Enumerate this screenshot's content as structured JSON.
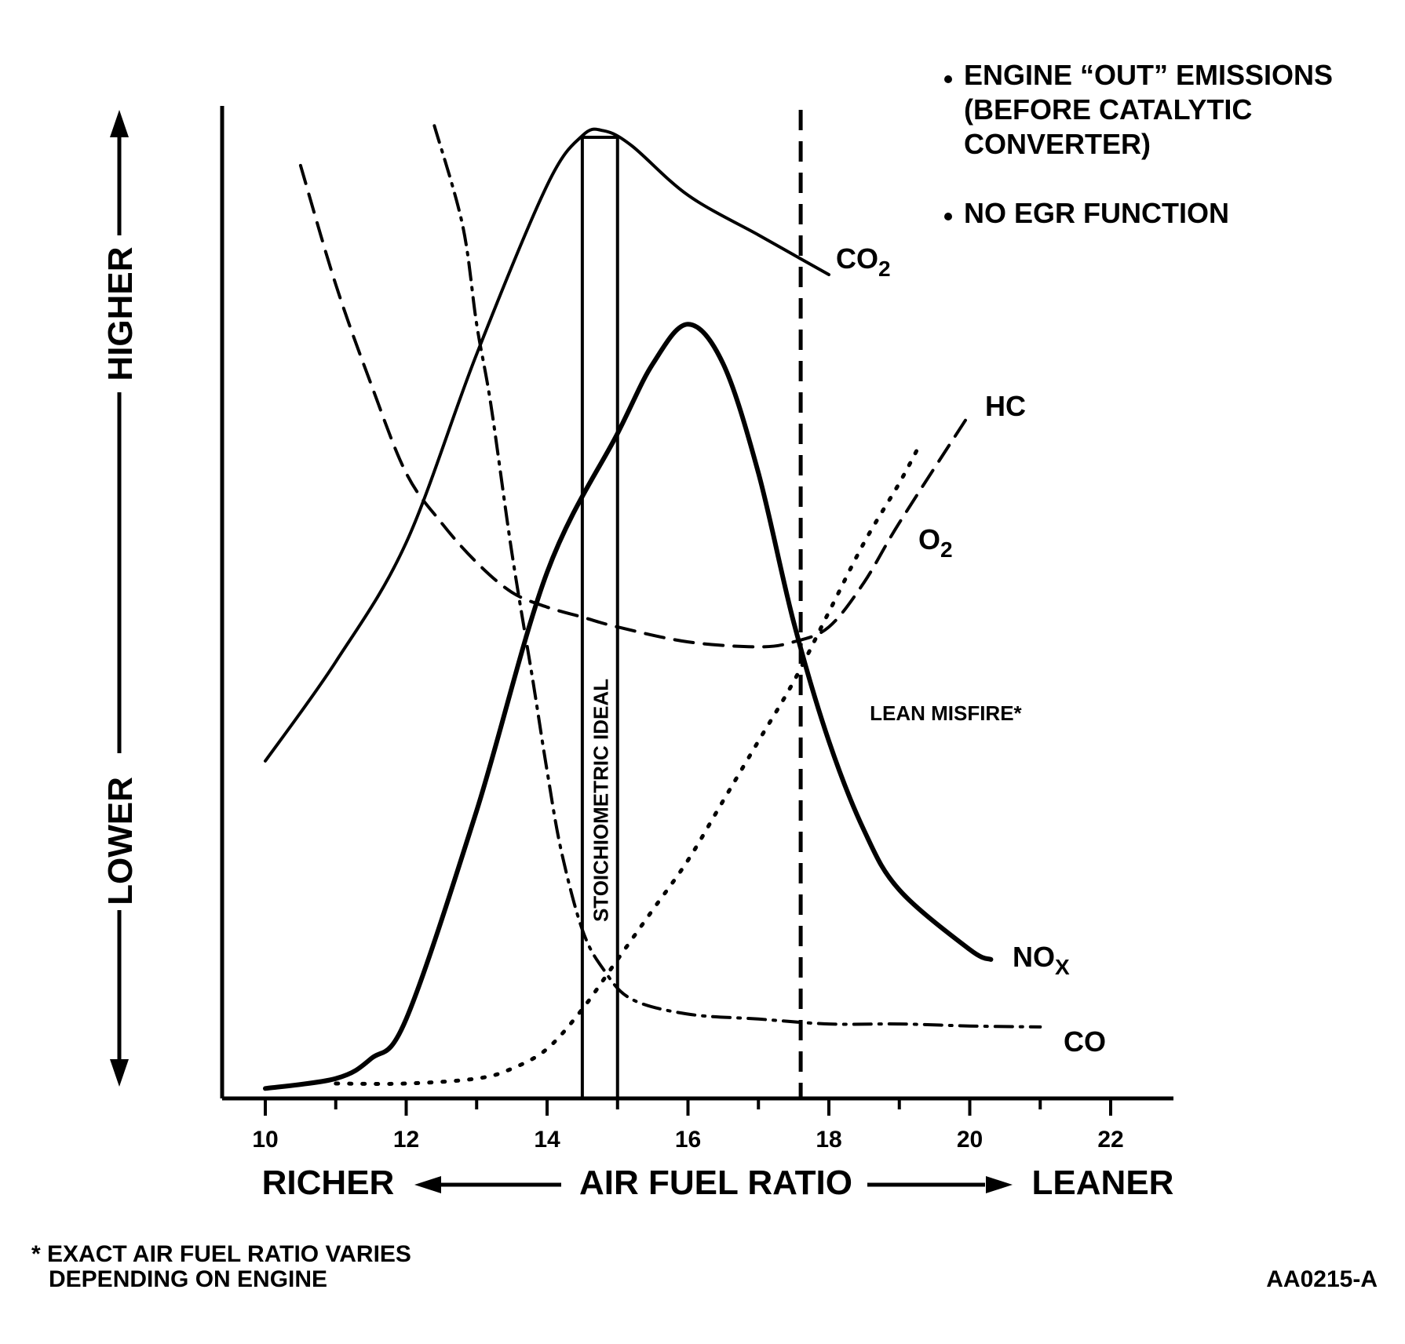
{
  "chart_data": {
    "type": "line",
    "title": "",
    "xlabel": "AIR FUEL RATIO",
    "x_direction_left": "RICHER",
    "x_direction_right": "LEANER",
    "y_direction_high": "HIGHER",
    "y_direction_low": "LOWER",
    "xlim": [
      9.5,
      23
    ],
    "ylim": [
      0,
      100
    ],
    "x_ticks": [
      10,
      12,
      14,
      16,
      18,
      20,
      22
    ],
    "x_tick_labels": [
      "10",
      "12",
      "14",
      "16",
      "18",
      "20",
      "22"
    ],
    "grid": false,
    "legend": "none",
    "notes": [
      "ENGINE “OUT” EMISSIONS",
      "(BEFORE CATALYTIC",
      "CONVERTER)",
      "NO EGR FUNCTION"
    ],
    "stoichiometric_band": {
      "x_from": 14.5,
      "x_to": 15.0,
      "label": "STOICHIOMETRIC IDEAL"
    },
    "lean_misfire": {
      "x": 17.6,
      "label": "LEAN MISFIRE*"
    },
    "footnote": [
      "* EXACT AIR FUEL RATIO VARIES",
      "DEPENDING ON ENGINE"
    ],
    "figure_id": "AA0215-A",
    "series": [
      {
        "name": "CO2",
        "label_main": "CO",
        "label_sub": "2",
        "style": "solid",
        "stroke_width": 4,
        "points": [
          [
            10.0,
            34
          ],
          [
            11.0,
            44
          ],
          [
            12.0,
            56
          ],
          [
            13.0,
            75
          ],
          [
            14.0,
            92
          ],
          [
            14.5,
            97
          ],
          [
            14.8,
            97.5
          ],
          [
            15.2,
            96
          ],
          [
            16.0,
            91
          ],
          [
            17.0,
            87
          ],
          [
            17.5,
            85
          ],
          [
            18.0,
            83
          ]
        ]
      },
      {
        "name": "NOx",
        "label_main": "NO",
        "label_sub": "X",
        "style": "solid",
        "stroke_width": 6,
        "points": [
          [
            10.0,
            1
          ],
          [
            11.0,
            2
          ],
          [
            11.5,
            4
          ],
          [
            12.0,
            8
          ],
          [
            13.0,
            29
          ],
          [
            14.0,
            53
          ],
          [
            15.0,
            67
          ],
          [
            15.5,
            74
          ],
          [
            16.0,
            78
          ],
          [
            16.5,
            74
          ],
          [
            17.0,
            63
          ],
          [
            17.5,
            48
          ],
          [
            18.0,
            36
          ],
          [
            18.5,
            27
          ],
          [
            19.0,
            21
          ],
          [
            20.0,
            15
          ],
          [
            20.3,
            14
          ]
        ]
      },
      {
        "name": "HC",
        "label_main": "HC",
        "label_sub": "",
        "style": "dashed",
        "stroke_width": 4,
        "points": [
          [
            10.5,
            94
          ],
          [
            11.0,
            82
          ],
          [
            11.5,
            72
          ],
          [
            12.0,
            63
          ],
          [
            12.5,
            58
          ],
          [
            13.0,
            54
          ],
          [
            13.5,
            51
          ],
          [
            14.0,
            49.5
          ],
          [
            14.5,
            48.5
          ],
          [
            15.0,
            47.5
          ],
          [
            16.0,
            46
          ],
          [
            17.0,
            45.5
          ],
          [
            17.5,
            46
          ],
          [
            18.0,
            47.5
          ],
          [
            18.5,
            52
          ],
          [
            19.0,
            58
          ],
          [
            20.0,
            69
          ]
        ]
      },
      {
        "name": "O2",
        "label_main": "O",
        "label_sub": "2",
        "style": "dotted",
        "stroke_width": 5,
        "points": [
          [
            11.0,
            1.5
          ],
          [
            12.0,
            1.5
          ],
          [
            13.0,
            2
          ],
          [
            13.5,
            3
          ],
          [
            14.0,
            5
          ],
          [
            14.5,
            9
          ],
          [
            15.0,
            14
          ],
          [
            15.5,
            19
          ],
          [
            16.0,
            24
          ],
          [
            16.5,
            30
          ],
          [
            17.0,
            36
          ],
          [
            17.5,
            42
          ],
          [
            18.0,
            49
          ],
          [
            18.5,
            56
          ],
          [
            19.0,
            62
          ],
          [
            19.3,
            66
          ]
        ]
      },
      {
        "name": "CO",
        "label_main": "CO",
        "label_sub": "",
        "style": "dashdot",
        "stroke_width": 4,
        "points": [
          [
            12.4,
            98
          ],
          [
            12.8,
            88
          ],
          [
            13.0,
            78
          ],
          [
            13.2,
            70
          ],
          [
            13.5,
            55
          ],
          [
            13.8,
            42
          ],
          [
            14.0,
            33
          ],
          [
            14.2,
            25
          ],
          [
            14.5,
            17
          ],
          [
            14.8,
            13
          ],
          [
            15.2,
            10
          ],
          [
            16.0,
            8.5
          ],
          [
            17.0,
            8
          ],
          [
            18.0,
            7.5
          ],
          [
            19.0,
            7.5
          ],
          [
            20.0,
            7.3
          ],
          [
            21.0,
            7.2
          ]
        ]
      }
    ]
  }
}
